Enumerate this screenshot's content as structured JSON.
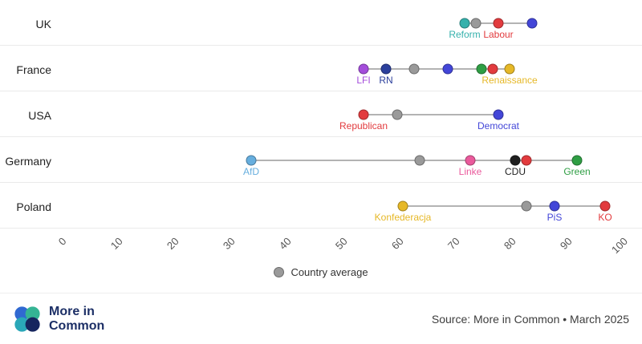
{
  "chart_data": {
    "type": "scatter",
    "subtype": "dumbbell-dot-plot",
    "title": "",
    "x_axis": {
      "min": 0,
      "max": 100,
      "ticks": [
        0,
        10,
        20,
        30,
        40,
        50,
        60,
        70,
        80,
        90,
        100
      ],
      "grid": false
    },
    "legend": {
      "label": "Country average",
      "color": "#9a9a9a",
      "position": "bottom-center"
    },
    "connector_color": "#b3b3b3",
    "rows": [
      {
        "country": "UK",
        "average": 74,
        "points": [
          {
            "value": 72,
            "color": "#35b1ac",
            "label": "Reform"
          },
          {
            "value": 78,
            "color": "#e23b3e",
            "label": "Labour"
          },
          {
            "value": 84,
            "color": "#4346d8",
            "label": ""
          }
        ]
      },
      {
        "country": "France",
        "average": 63,
        "points": [
          {
            "value": 54,
            "color": "#a44ddb",
            "label": "LFI"
          },
          {
            "value": 58,
            "color": "#2b3f9c",
            "label": "RN"
          },
          {
            "value": 69,
            "color": "#4346d8",
            "label": ""
          },
          {
            "value": 75,
            "color": "#2f9e44",
            "label": ""
          },
          {
            "value": 77,
            "color": "#e23b3e",
            "label": ""
          },
          {
            "value": 80,
            "color": "#e6b827",
            "label": "Renaissance"
          }
        ]
      },
      {
        "country": "USA",
        "average": 60,
        "points": [
          {
            "value": 54,
            "color": "#e23b3e",
            "label": "Republican"
          },
          {
            "value": 78,
            "color": "#4346d8",
            "label": "Democrat"
          }
        ]
      },
      {
        "country": "Germany",
        "average": 64,
        "points": [
          {
            "value": 34,
            "color": "#66aede",
            "label": "AfD"
          },
          {
            "value": 73,
            "color": "#ea5a9c",
            "label": "Linke"
          },
          {
            "value": 83,
            "color": "#e23b3e",
            "label": ""
          },
          {
            "value": 81,
            "color": "#1f1f1f",
            "label": "CDU"
          },
          {
            "value": 92,
            "color": "#2f9e44",
            "label": "Green"
          }
        ]
      },
      {
        "country": "Poland",
        "average": 83,
        "points": [
          {
            "value": 61,
            "color": "#e6b827",
            "label": "Konfederacja"
          },
          {
            "value": 88,
            "color": "#4346d8",
            "label": "PiS"
          },
          {
            "value": 97,
            "color": "#e23b3e",
            "label": "KO"
          }
        ]
      }
    ]
  },
  "footer": {
    "brand_line1": "More in",
    "brand_line2": "Common",
    "source": "Source: More in Common • March 2025",
    "logo_colors": [
      "#3069d1",
      "#35b494",
      "#2aa7b8",
      "#16255e"
    ]
  }
}
